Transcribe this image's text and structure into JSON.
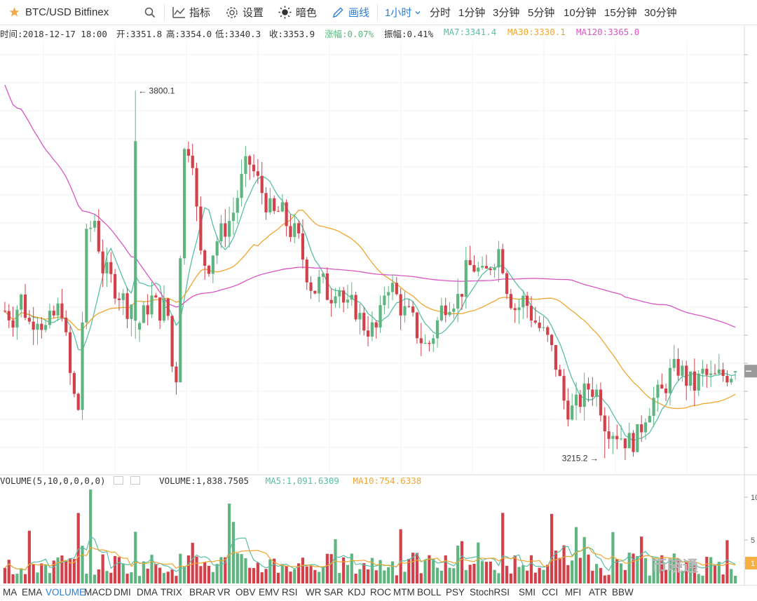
{
  "toolbar": {
    "symbol": "BTC/USD Bitfinex",
    "indicators": "指标",
    "settings": "设置",
    "theme": "暗色",
    "draw": "画线",
    "interval_selected": "1小时",
    "intervals": [
      "分时",
      "1分钟",
      "3分钟",
      "5分钟",
      "10分钟",
      "15分钟",
      "30分钟"
    ]
  },
  "info": {
    "time": "时间:2018-12-17 18:00",
    "open": "开:3351.8",
    "high": "高:3354.0",
    "low": "低:3340.3",
    "close": "收:3353.9",
    "change": "涨幅:0.07%",
    "amplitude": "振幅:0.41%",
    "ma7": "MA7:3341.4",
    "ma30": "MA30:3330.1",
    "ma120": "MA120:3365.0"
  },
  "volume_info": {
    "name": "VOLUME(5,10,0,0,0,0)",
    "value": "VOLUME:1,838.7505",
    "ma5": "MA5:1,091.6309",
    "ma10": "MA10:754.6338"
  },
  "annotations": {
    "high": "3800.1",
    "low": "3215.2"
  },
  "axis": {
    "vol_ticks": [
      "10",
      "5",
      "1"
    ]
  },
  "watermark": "币晓通",
  "tabs": [
    "MA",
    "EMA",
    "VOLUME",
    "MACD",
    "DMI",
    "DMA",
    "TRIX",
    "BRAR",
    "VR",
    "OBV",
    "EMV",
    "RSI",
    "WR",
    "SAR",
    "KDJ",
    "ROC",
    "MTM",
    "BOLL",
    "PSY",
    "StochRSI",
    "SMI",
    "CCI",
    "MFI",
    "ATR",
    "BBW"
  ],
  "tab_selected": "VOLUME",
  "colors": {
    "up": "#5fb580",
    "down": "#d2404a",
    "ma7": "#59bfa6",
    "ma30": "#f0a630",
    "ma120": "#d957c4",
    "accent": "#2a7fd9"
  },
  "chart_data": {
    "type": "candlestick",
    "price_extremes": {
      "high": 3800.1,
      "low": 3215.2
    },
    "last": {
      "open": 3351.8,
      "high": 3354.0,
      "low": 3340.3,
      "close": 3353.9
    },
    "closes": [
      3450,
      3440,
      3470,
      3430,
      3445,
      3420,
      3440,
      3460,
      3350,
      3280,
      3560,
      3600,
      3520,
      3500,
      3480,
      3460,
      3420,
      3440,
      3470,
      3450,
      3460,
      3300,
      3700,
      3720,
      3540,
      3520,
      3560,
      3580,
      3600,
      3650,
      3690,
      3660,
      3630,
      3600,
      3610,
      3580,
      3570,
      3520,
      3480,
      3500,
      3470,
      3500,
      3450,
      3460,
      3430,
      3420,
      3420,
      3500,
      3480,
      3450,
      3440,
      3410,
      3390,
      3420,
      3460,
      3470,
      3470,
      3520,
      3520,
      3500,
      3530,
      3550,
      3480,
      3450,
      3470,
      3440,
      3420,
      3400,
      3360,
      3300,
      3290,
      3310,
      3330,
      3320,
      3270,
      3260,
      3250,
      3240,
      3250,
      3290,
      3310,
      3320,
      3350,
      3360,
      3340,
      3330,
      3350,
      3340,
      3345,
      3350,
      3354
    ],
    "volume_ticks": [
      "10",
      "5",
      "1"
    ],
    "series": [
      {
        "name": "MA7"
      },
      {
        "name": "MA30"
      },
      {
        "name": "MA120"
      }
    ]
  }
}
